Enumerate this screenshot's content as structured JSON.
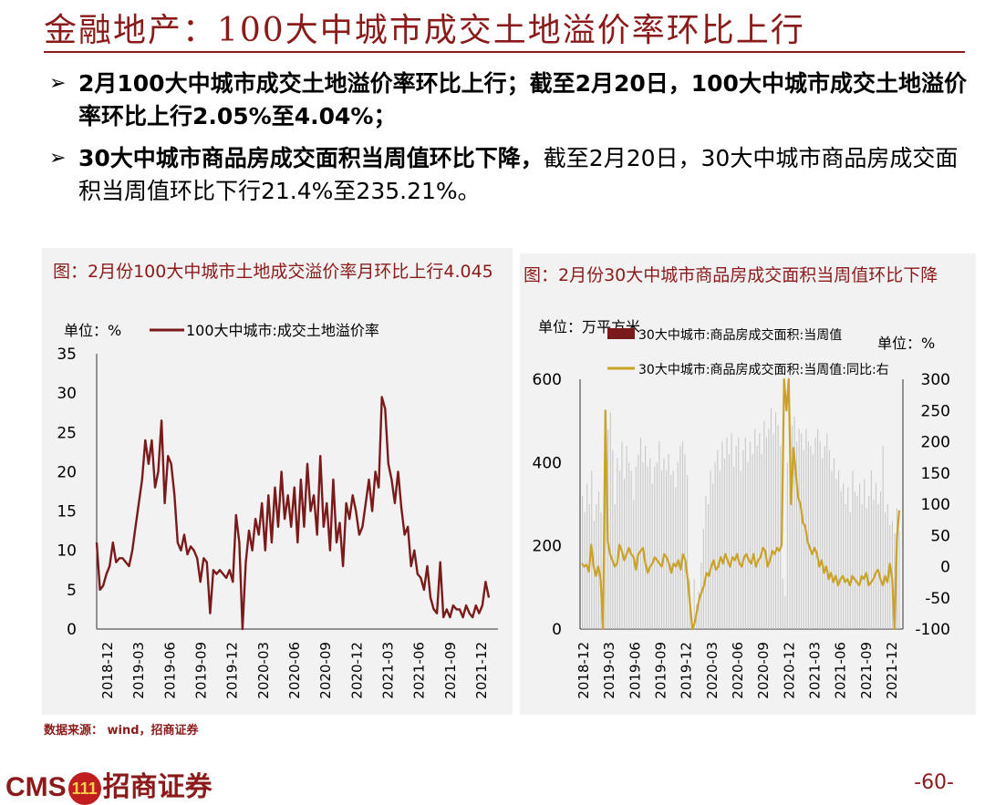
{
  "header": {
    "title": "金融地产：100大中城市成交土地溢价率环比上行"
  },
  "bullets": [
    {
      "marker": "➢",
      "bold": "2月100大中城市成交土地溢价率环比上行；截至2月20日，100大中城市成交土地溢价率环比上行2.05%至4.04%；",
      "rest": ""
    },
    {
      "marker": "➢",
      "bold": "30大中城市商品房成交面积当周值环比下降，",
      "rest": "截至2月20日，30大中城市商品房成交面积当周值环比下行21.4%至235.21%。"
    }
  ],
  "source": "数据来源： wind，招商证券",
  "footer": {
    "logo_text": "CMS",
    "logo_badge": "111",
    "logo_name": "招商证券",
    "page": "-60-"
  },
  "colors": {
    "brand": "#8b1a1a",
    "line_dark_red": "#7a1a1a",
    "line_gold": "#c9a227",
    "bar_gray": "#c9c9c9"
  },
  "chart_data": [
    {
      "type": "line",
      "title": "图：2月份100大中城市土地成交溢价率月环比上行4.045",
      "unit_label": "单位：%",
      "legend": [
        "100大中城市:成交土地溢价率"
      ],
      "ylim": [
        0,
        35
      ],
      "yticks": [
        "0",
        "5",
        "10",
        "15",
        "20",
        "25",
        "30",
        "35"
      ],
      "xticks": [
        "2018-12",
        "2019-03",
        "2019-06",
        "2019-09",
        "2019-12",
        "2020-03",
        "2020-06",
        "2020-09",
        "2020-12",
        "2021-03",
        "2021-06",
        "2021-09",
        "2021-12"
      ],
      "series": [
        {
          "name": "100大中城市:成交土地溢价率",
          "values": [
            11,
            5,
            5.5,
            7,
            8,
            11,
            8.5,
            9,
            9,
            8.5,
            8,
            10,
            13,
            16,
            19,
            24,
            21,
            24,
            18,
            20,
            26.5,
            16,
            22,
            21,
            17,
            11,
            10,
            12,
            9.5,
            10.5,
            10,
            9,
            6,
            9,
            8.5,
            2,
            7.5,
            7,
            7.5,
            7,
            6.5,
            7.5,
            6,
            14.5,
            11,
            0,
            8.5,
            12.5,
            10,
            14,
            12,
            16,
            10,
            17,
            11,
            18,
            13,
            20,
            14,
            17,
            13,
            18,
            11,
            19,
            13,
            21,
            15,
            17,
            12,
            22,
            13,
            16,
            10,
            19,
            11,
            13.5,
            8,
            16,
            14,
            17,
            15,
            12,
            13,
            16,
            19,
            15,
            20,
            18,
            29.5,
            28,
            21,
            19,
            16,
            20,
            15.5,
            12,
            13,
            8,
            10,
            7,
            6.5,
            5,
            8,
            4,
            2.5,
            2,
            8.5,
            1.5,
            2.5,
            1.5,
            3,
            2.5,
            2.5,
            1.5,
            3,
            2,
            1.5,
            3,
            2,
            3,
            6,
            4
          ]
        }
      ]
    },
    {
      "type": "bar",
      "title": "图：2月份30大中城市商品房成交面积当周值环比下降",
      "unit_left": "单位：万平方米",
      "unit_right": "单位：%",
      "legend": [
        "30大中城市:商品房成交面积:当周值",
        "30大中城市:商品房成交面积:当周值:同比:右"
      ],
      "ylim_left": [
        0,
        600
      ],
      "ylim_right": [
        -100,
        300
      ],
      "yticks_left": [
        "0",
        "200",
        "400",
        "600"
      ],
      "yticks_right": [
        "-100",
        "-50",
        "0",
        "50",
        "100",
        "150",
        "200",
        "250",
        "300"
      ],
      "xticks": [
        "2018-12",
        "2019-03",
        "2019-06",
        "2019-09",
        "2019-12",
        "2020-03",
        "2020-06",
        "2020-09",
        "2020-12",
        "2021-03",
        "2021-06",
        "2021-09",
        "2021-12"
      ],
      "series": [
        {
          "name": "30大中城市:商品房成交面积:当周值",
          "values": [
            320,
            280,
            350,
            300,
            380,
            260,
            300,
            330,
            280,
            150,
            420,
            480,
            520,
            430,
            300,
            410,
            380,
            450,
            360,
            440,
            400,
            380,
            310,
            390,
            420,
            460,
            400,
            440,
            390,
            410,
            350,
            390,
            400,
            450,
            380,
            410,
            380,
            420,
            370,
            380,
            340,
            400,
            440,
            450,
            420,
            370,
            120,
            20,
            120,
            60,
            90,
            160,
            240,
            320,
            300,
            380,
            350,
            400,
            430,
            380,
            450,
            410,
            460,
            420,
            470,
            390,
            440,
            460,
            380,
            430,
            460,
            400,
            450,
            420,
            480,
            440,
            470,
            420,
            500,
            460,
            480,
            530,
            470,
            520,
            490,
            440,
            120,
            80,
            400,
            460,
            490,
            510,
            450,
            480,
            470,
            430,
            480,
            450,
            440,
            420,
            460,
            480,
            450,
            410,
            440,
            470,
            430,
            380,
            410,
            360,
            380,
            330,
            350,
            300,
            340,
            280,
            380,
            330,
            320,
            350,
            300,
            360,
            290,
            320,
            380,
            310,
            350,
            300,
            330,
            440,
            280,
            300,
            250,
            260,
            230,
            290,
            235
          ]
        },
        {
          "name": "30大中城市:商品房成交面积:当周值:同比:右",
          "values": [
            5,
            0,
            3,
            -8,
            35,
            0,
            -15,
            0,
            -20,
            -100,
            250,
            40,
            20,
            10,
            0,
            5,
            35,
            25,
            10,
            20,
            30,
            20,
            15,
            -5,
            20,
            25,
            30,
            5,
            -10,
            0,
            5,
            15,
            10,
            5,
            0,
            20,
            15,
            5,
            -10,
            5,
            0,
            10,
            -5,
            20,
            10,
            -20,
            -60,
            -100,
            -90,
            -70,
            -50,
            -40,
            -30,
            -10,
            -15,
            0,
            10,
            -5,
            0,
            15,
            5,
            20,
            10,
            0,
            15,
            10,
            20,
            5,
            0,
            15,
            20,
            10,
            5,
            20,
            0,
            10,
            15,
            30,
            25,
            0,
            10,
            25,
            20,
            30,
            25,
            35,
            300,
            250,
            300,
            100,
            190,
            150,
            110,
            100,
            70,
            65,
            40,
            30,
            20,
            30,
            20,
            0,
            10,
            -10,
            0,
            -20,
            -10,
            -25,
            -15,
            -30,
            -20,
            -15,
            -25,
            -20,
            -30,
            -15,
            -20,
            -25,
            -30,
            -15,
            -20,
            -10,
            -30,
            -25,
            -20,
            -10,
            -5,
            -20,
            -30,
            -15,
            -25,
            5,
            -20,
            -100,
            45,
            90
          ]
        }
      ]
    }
  ]
}
